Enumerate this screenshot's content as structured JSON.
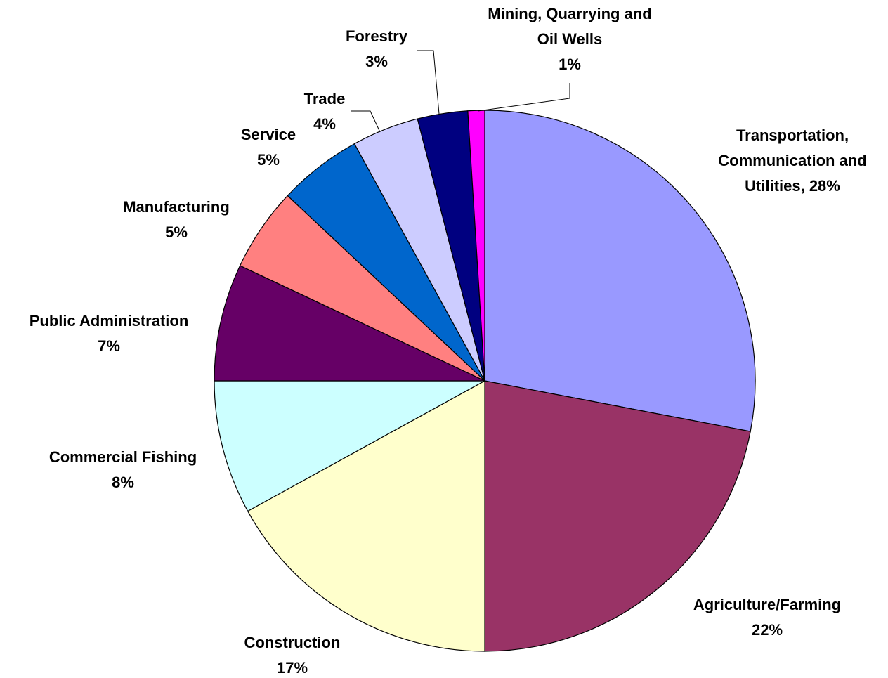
{
  "chart_data": {
    "type": "pie",
    "values": [
      28,
      22,
      17,
      8,
      7,
      5,
      5,
      4,
      3,
      1
    ],
    "value_labels": [
      "Transportation,\nCommunication and\nUtilities, 28%",
      "Agriculture/Farming\n22%",
      "Construction\n17%",
      "Commercial Fishing\n8%",
      "Public Administration\n7%",
      "Manufacturing\n5%",
      "Service\n5%",
      "Trade\n4%",
      "Forestry\n3%",
      "Mining, Quarrying and\nOil Wells\n1%"
    ],
    "colors": [
      "#9999ff",
      "#993366",
      "#ffffcc",
      "#ccffff",
      "#660066",
      "#ff8080",
      "#0066cc",
      "#ccccff",
      "#000080",
      "#ff00ff"
    ]
  }
}
